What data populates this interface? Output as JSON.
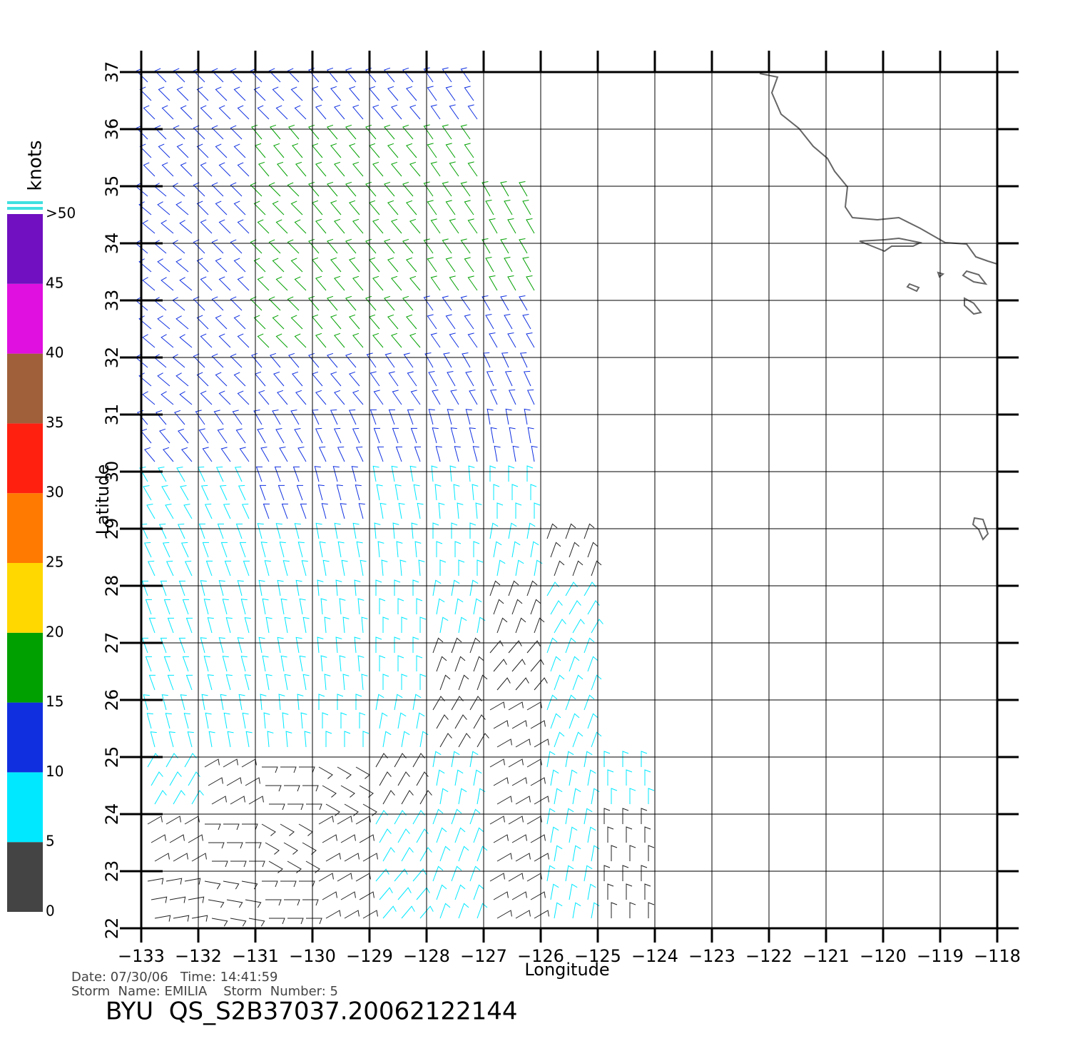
{
  "chart_data": {
    "type": "wind-barbs",
    "xlabel": "Longitude",
    "ylabel": "Latitude",
    "xlim": [
      -133,
      -118
    ],
    "ylim": [
      22,
      37
    ],
    "xticks": [
      {
        "value": -133,
        "label": "−133"
      },
      {
        "value": -132,
        "label": "−132"
      },
      {
        "value": -131,
        "label": "−131"
      },
      {
        "value": -130,
        "label": "−130"
      },
      {
        "value": -129,
        "label": "−129"
      },
      {
        "value": -128,
        "label": "−128"
      },
      {
        "value": -127,
        "label": "−127"
      },
      {
        "value": -126,
        "label": "−126"
      },
      {
        "value": -125,
        "label": "−125"
      },
      {
        "value": -124,
        "label": "−124"
      },
      {
        "value": -123,
        "label": "−123"
      },
      {
        "value": -122,
        "label": "−122"
      },
      {
        "value": -121,
        "label": "−121"
      },
      {
        "value": -120,
        "label": "−120"
      },
      {
        "value": -119,
        "label": "−119"
      },
      {
        "value": -118,
        "label": "−118"
      }
    ],
    "yticks": [
      22,
      23,
      24,
      25,
      26,
      27,
      28,
      29,
      30,
      31,
      32,
      33,
      34,
      35,
      36,
      37
    ],
    "grid": true,
    "colorbar": {
      "title": "knots",
      "ticks": [
        0,
        5,
        10,
        15,
        20,
        25,
        30,
        35,
        40,
        45,
        {
          "value": 50,
          "label": ">50"
        }
      ],
      "colors": [
        "#444444",
        "#00e8ff",
        "#1030e0",
        "#00a000",
        "#ffd800",
        "#ff7a00",
        "#ff2010",
        "#a0603a",
        "#e010e0",
        "#7010c0"
      ]
    },
    "wind": {
      "lat": [
        36.5,
        35.5,
        34.5,
        33.5,
        32.5,
        31.5,
        30.5,
        29.5,
        28.5,
        27.5,
        26.5,
        25.5,
        24.5,
        23.5,
        22.5
      ],
      "lon": [
        -132.5,
        -131.5,
        -130.5,
        -129.5,
        -128.5,
        -127.5,
        -126.5,
        -125.5,
        -124.5
      ],
      "speed": [
        [
          12,
          12,
          13,
          13,
          13,
          14
        ],
        [
          12,
          13,
          15,
          16,
          16,
          17
        ],
        [
          12,
          13,
          16,
          17,
          17,
          17,
          18
        ],
        [
          12,
          14,
          16,
          17,
          17,
          17,
          17
        ],
        [
          12,
          13,
          15,
          16,
          15,
          14,
          13
        ],
        [
          11,
          12,
          12,
          13,
          13,
          13,
          12
        ],
        [
          11,
          11,
          11,
          11,
          11,
          11,
          10
        ],
        [
          9,
          9,
          10,
          10,
          9,
          8,
          7
        ],
        [
          8,
          8,
          8,
          8,
          7,
          6,
          5,
          4
        ],
        [
          7,
          7,
          7,
          7,
          6,
          5,
          4,
          5
        ],
        [
          7,
          7,
          6,
          6,
          5,
          4,
          3,
          6
        ],
        [
          6,
          6,
          6,
          5,
          5,
          4,
          3,
          6
        ],
        [
          5,
          4,
          3,
          3,
          3,
          5,
          4,
          5,
          6
        ],
        [
          4,
          3,
          3,
          4,
          6,
          5,
          4,
          6,
          4
        ],
        [
          3,
          3,
          3,
          4,
          6,
          5,
          4,
          7,
          3
        ]
      ],
      "direction": [
        [
          315,
          315,
          315,
          320,
          320,
          325
        ],
        [
          315,
          315,
          320,
          320,
          320,
          325
        ],
        [
          310,
          315,
          315,
          320,
          320,
          325,
          330
        ],
        [
          310,
          315,
          315,
          320,
          320,
          325,
          330
        ],
        [
          310,
          315,
          315,
          320,
          320,
          325,
          330
        ],
        [
          310,
          315,
          320,
          320,
          325,
          330,
          335
        ],
        [
          320,
          325,
          330,
          335,
          340,
          345,
          350
        ],
        [
          330,
          335,
          340,
          345,
          350,
          355,
          0
        ],
        [
          335,
          340,
          345,
          350,
          355,
          0,
          10,
          20
        ],
        [
          340,
          345,
          350,
          355,
          0,
          10,
          20,
          30
        ],
        [
          340,
          345,
          350,
          355,
          0,
          20,
          40,
          20
        ],
        [
          345,
          350,
          355,
          0,
          10,
          30,
          60,
          20
        ],
        [
          30,
          60,
          90,
          120,
          30,
          10,
          60,
          10,
          0
        ],
        [
          60,
          90,
          120,
          60,
          30,
          20,
          60,
          10,
          0
        ],
        [
          80,
          100,
          90,
          60,
          40,
          20,
          60,
          10,
          0
        ]
      ]
    },
    "info": {
      "date": "Date: 07/30/06   Time: 14:41:59",
      "storm": "Storm  Name: EMILIA    Storm  Number: 5",
      "id": "BYU  QS_S2B37037.20062122144"
    }
  }
}
